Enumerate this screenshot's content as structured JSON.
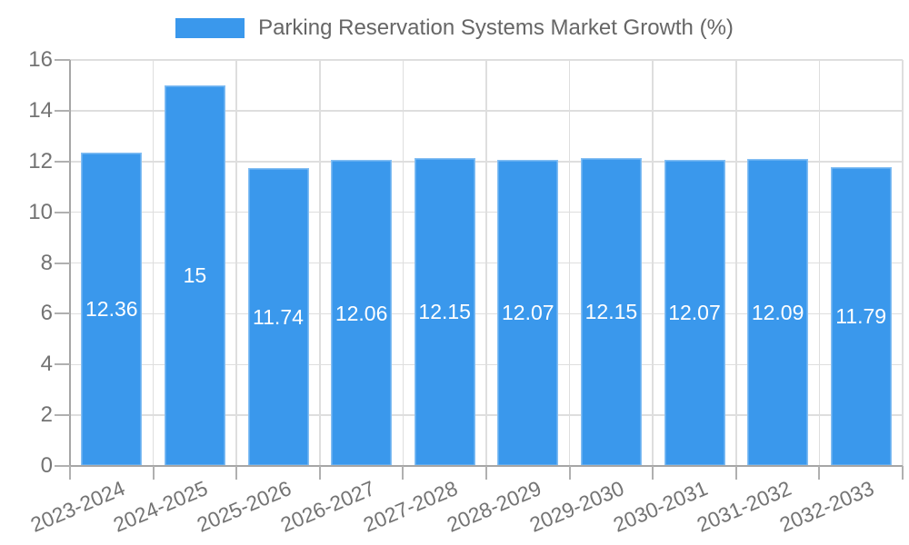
{
  "legend": {
    "label": "Parking Reservation Systems Market Growth (%)"
  },
  "chart_data": {
    "type": "bar",
    "title": "Parking Reservation Systems Market Growth (%)",
    "categories": [
      "2023-2024",
      "2024-2025",
      "2025-2026",
      "2026-2027",
      "2027-2028",
      "2028-2029",
      "2029-2030",
      "2030-2031",
      "2031-2032",
      "2032-2033"
    ],
    "values": [
      12.36,
      15,
      11.74,
      12.06,
      12.15,
      12.07,
      12.15,
      12.07,
      12.09,
      11.79
    ],
    "bar_labels": [
      "12.36",
      "15",
      "11.74",
      "12.06",
      "12.15",
      "12.07",
      "12.15",
      "12.07",
      "12.09",
      "11.79"
    ],
    "xlabel": "",
    "ylabel": "",
    "ylim": [
      0,
      16
    ],
    "yticks": [
      0,
      2,
      4,
      6,
      8,
      10,
      12,
      14,
      16
    ],
    "ytick_labels": [
      "0",
      "2",
      "4",
      "6",
      "8",
      "10",
      "12",
      "14",
      "16"
    ],
    "grid": true,
    "legend_position": "top-center",
    "colors": {
      "bar": "#3A98EC",
      "grid": "#DEDEDE",
      "axis": "#A6A6A6",
      "tick": "#B0B0B0",
      "tick_label": "#737373",
      "legend_text": "#666666",
      "bar_label_text": "#FFFFFF",
      "background": "#FFFFFF"
    }
  }
}
